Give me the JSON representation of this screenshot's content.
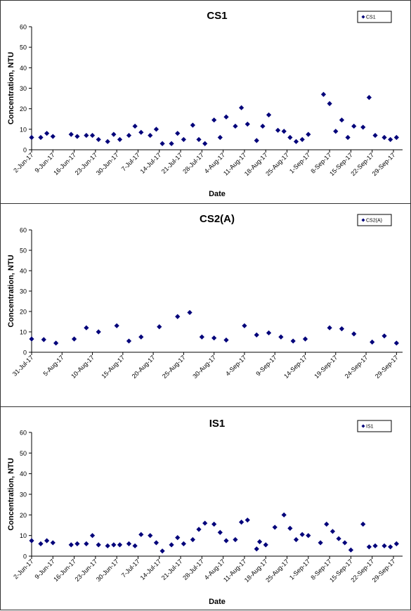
{
  "chart_data": [
    {
      "type": "scatter",
      "title": "CS1",
      "xlabel": "Date",
      "ylabel": "Concentration, NTU",
      "ylim": [
        0,
        60
      ],
      "yticks": [
        "0",
        "10",
        "20",
        "30",
        "40",
        "50",
        "60"
      ],
      "xticks": [
        "2-Jun-17",
        "9-Jun-17",
        "16-Jun-17",
        "23-Jun-17",
        "30-Jun-17",
        "7-Jul-17",
        "14-Jul-17",
        "21-Jul-17",
        "28-Jul-17",
        "4-Aug-17",
        "11-Aug-17",
        "18-Aug-17",
        "25-Aug-17",
        "1-Sep-17",
        "8-Sep-17",
        "15-Sep-17",
        "22-Sep-17",
        "29-Sep-17"
      ],
      "xrange": [
        "2017-06-02",
        "2017-10-02"
      ],
      "grid": false,
      "legend": "top-right",
      "marker_color": "#00007a",
      "series": [
        {
          "name": "CS1",
          "points": [
            [
              "2017-06-02",
              6
            ],
            [
              "2017-06-05",
              6
            ],
            [
              "2017-06-07",
              8
            ],
            [
              "2017-06-09",
              6.5
            ],
            [
              "2017-06-15",
              7.5
            ],
            [
              "2017-06-17",
              6.5
            ],
            [
              "2017-06-20",
              7
            ],
            [
              "2017-06-22",
              7
            ],
            [
              "2017-06-24",
              5
            ],
            [
              "2017-06-27",
              4
            ],
            [
              "2017-06-29",
              7.5
            ],
            [
              "2017-07-01",
              5
            ],
            [
              "2017-07-04",
              7
            ],
            [
              "2017-07-06",
              11.5
            ],
            [
              "2017-07-08",
              8.5
            ],
            [
              "2017-07-11",
              7
            ],
            [
              "2017-07-13",
              10
            ],
            [
              "2017-07-15",
              3
            ],
            [
              "2017-07-18",
              3
            ],
            [
              "2017-07-20",
              8
            ],
            [
              "2017-07-22",
              5
            ],
            [
              "2017-07-25",
              12
            ],
            [
              "2017-07-27",
              5
            ],
            [
              "2017-07-29",
              3
            ],
            [
              "2017-08-01",
              14.5
            ],
            [
              "2017-08-03",
              6
            ],
            [
              "2017-08-05",
              16
            ],
            [
              "2017-08-08",
              11.5
            ],
            [
              "2017-08-10",
              20.5
            ],
            [
              "2017-08-12",
              12.5
            ],
            [
              "2017-08-15",
              4.5
            ],
            [
              "2017-08-17",
              11.5
            ],
            [
              "2017-08-19",
              17
            ],
            [
              "2017-08-22",
              9.5
            ],
            [
              "2017-08-24",
              9
            ],
            [
              "2017-08-26",
              6
            ],
            [
              "2017-08-28",
              4
            ],
            [
              "2017-08-30",
              5
            ],
            [
              "2017-09-01",
              7.5
            ],
            [
              "2017-09-06",
              27
            ],
            [
              "2017-09-08",
              22.5
            ],
            [
              "2017-09-10",
              9
            ],
            [
              "2017-09-12",
              14.5
            ],
            [
              "2017-09-14",
              6
            ],
            [
              "2017-09-16",
              11.5
            ],
            [
              "2017-09-19",
              11
            ],
            [
              "2017-09-21",
              25.5
            ],
            [
              "2017-09-23",
              7
            ],
            [
              "2017-09-26",
              6
            ],
            [
              "2017-09-28",
              5
            ],
            [
              "2017-09-30",
              6
            ]
          ]
        }
      ]
    },
    {
      "type": "scatter",
      "title": "CS2(A)",
      "xlabel": "",
      "ylabel": "Concentration, NTU",
      "ylim": [
        0,
        60
      ],
      "yticks": [
        "0",
        "10",
        "20",
        "30",
        "40",
        "50",
        "60"
      ],
      "xticks": [
        "31-Jul-17",
        "5-Aug-17",
        "10-Aug-17",
        "15-Aug-17",
        "20-Aug-17",
        "25-Aug-17",
        "30-Aug-17",
        "4-Sep-17",
        "9-Sep-17",
        "14-Sep-17",
        "19-Sep-17",
        "24-Sep-17",
        "29-Sep-17"
      ],
      "xrange": [
        "2017-07-31",
        "2017-09-30"
      ],
      "grid": false,
      "legend": "top-right",
      "marker_color": "#00007a",
      "series": [
        {
          "name": "CS2(A)",
          "points": [
            [
              "2017-07-31",
              6.5
            ],
            [
              "2017-08-02",
              6.2
            ],
            [
              "2017-08-04",
              4.5
            ],
            [
              "2017-08-07",
              6.5
            ],
            [
              "2017-08-09",
              12
            ],
            [
              "2017-08-11",
              10
            ],
            [
              "2017-08-14",
              13
            ],
            [
              "2017-08-16",
              5.5
            ],
            [
              "2017-08-18",
              7.5
            ],
            [
              "2017-08-21",
              12.5
            ],
            [
              "2017-08-24",
              17.5
            ],
            [
              "2017-08-26",
              19.5
            ],
            [
              "2017-08-28",
              7.5
            ],
            [
              "2017-08-30",
              7
            ],
            [
              "2017-09-01",
              6
            ],
            [
              "2017-09-04",
              13
            ],
            [
              "2017-09-06",
              8.5
            ],
            [
              "2017-09-08",
              9.5
            ],
            [
              "2017-09-10",
              7.5
            ],
            [
              "2017-09-12",
              5.5
            ],
            [
              "2017-09-14",
              6.5
            ],
            [
              "2017-09-18",
              12
            ],
            [
              "2017-09-20",
              11.5
            ],
            [
              "2017-09-22",
              9
            ],
            [
              "2017-09-25",
              5
            ],
            [
              "2017-09-27",
              8
            ],
            [
              "2017-09-29",
              4.5
            ]
          ]
        }
      ]
    },
    {
      "type": "scatter",
      "title": "IS1",
      "xlabel": "Date",
      "ylabel": "Concentration, NTU",
      "ylim": [
        0,
        60
      ],
      "yticks": [
        "0",
        "10",
        "20",
        "30",
        "40",
        "50",
        "60"
      ],
      "xticks": [
        "2-Jun-17",
        "9-Jun-17",
        "16-Jun-17",
        "23-Jun-17",
        "30-Jun-17",
        "7-Jul-17",
        "14-Jul-17",
        "21-Jul-17",
        "28-Jul-17",
        "4-Aug-17",
        "11-Aug-17",
        "18-Aug-17",
        "25-Aug-17",
        "1-Sep-17",
        "8-Sep-17",
        "15-Sep-17",
        "22-Sep-17",
        "29-Sep-17"
      ],
      "xrange": [
        "2017-06-02",
        "2017-10-02"
      ],
      "grid": false,
      "legend": "top-right",
      "marker_color": "#00007a",
      "series": [
        {
          "name": "IS1",
          "points": [
            [
              "2017-06-02",
              7.5
            ],
            [
              "2017-06-05",
              6
            ],
            [
              "2017-06-07",
              7.5
            ],
            [
              "2017-06-09",
              6.5
            ],
            [
              "2017-06-15",
              5.5
            ],
            [
              "2017-06-17",
              6
            ],
            [
              "2017-06-20",
              6
            ],
            [
              "2017-06-22",
              10
            ],
            [
              "2017-06-24",
              5.5
            ],
            [
              "2017-06-27",
              5
            ],
            [
              "2017-06-29",
              5.5
            ],
            [
              "2017-07-01",
              5.5
            ],
            [
              "2017-07-04",
              6
            ],
            [
              "2017-07-06",
              5
            ],
            [
              "2017-07-08",
              10.5
            ],
            [
              "2017-07-11",
              10
            ],
            [
              "2017-07-13",
              6.5
            ],
            [
              "2017-07-15",
              2.5
            ],
            [
              "2017-07-18",
              5.5
            ],
            [
              "2017-07-20",
              9
            ],
            [
              "2017-07-22",
              6
            ],
            [
              "2017-07-25",
              8
            ],
            [
              "2017-07-27",
              13
            ],
            [
              "2017-07-29",
              16
            ],
            [
              "2017-08-01",
              15.5
            ],
            [
              "2017-08-03",
              11.5
            ],
            [
              "2017-08-05",
              7.5
            ],
            [
              "2017-08-08",
              8
            ],
            [
              "2017-08-10",
              16.5
            ],
            [
              "2017-08-12",
              17.5
            ],
            [
              "2017-08-15",
              3.5
            ],
            [
              "2017-08-16",
              7
            ],
            [
              "2017-08-18",
              5.5
            ],
            [
              "2017-08-21",
              14
            ],
            [
              "2017-08-24",
              20
            ],
            [
              "2017-08-26",
              13.5
            ],
            [
              "2017-08-28",
              8
            ],
            [
              "2017-08-30",
              10.5
            ],
            [
              "2017-09-01",
              10
            ],
            [
              "2017-09-05",
              6.5
            ],
            [
              "2017-09-07",
              15.5
            ],
            [
              "2017-09-09",
              12
            ],
            [
              "2017-09-11",
              8.5
            ],
            [
              "2017-09-13",
              6.5
            ],
            [
              "2017-09-15",
              3
            ],
            [
              "2017-09-19",
              15.5
            ],
            [
              "2017-09-21",
              4.5
            ],
            [
              "2017-09-23",
              5
            ],
            [
              "2017-09-26",
              5
            ],
            [
              "2017-09-28",
              4.5
            ],
            [
              "2017-09-30",
              6
            ]
          ]
        }
      ]
    }
  ]
}
